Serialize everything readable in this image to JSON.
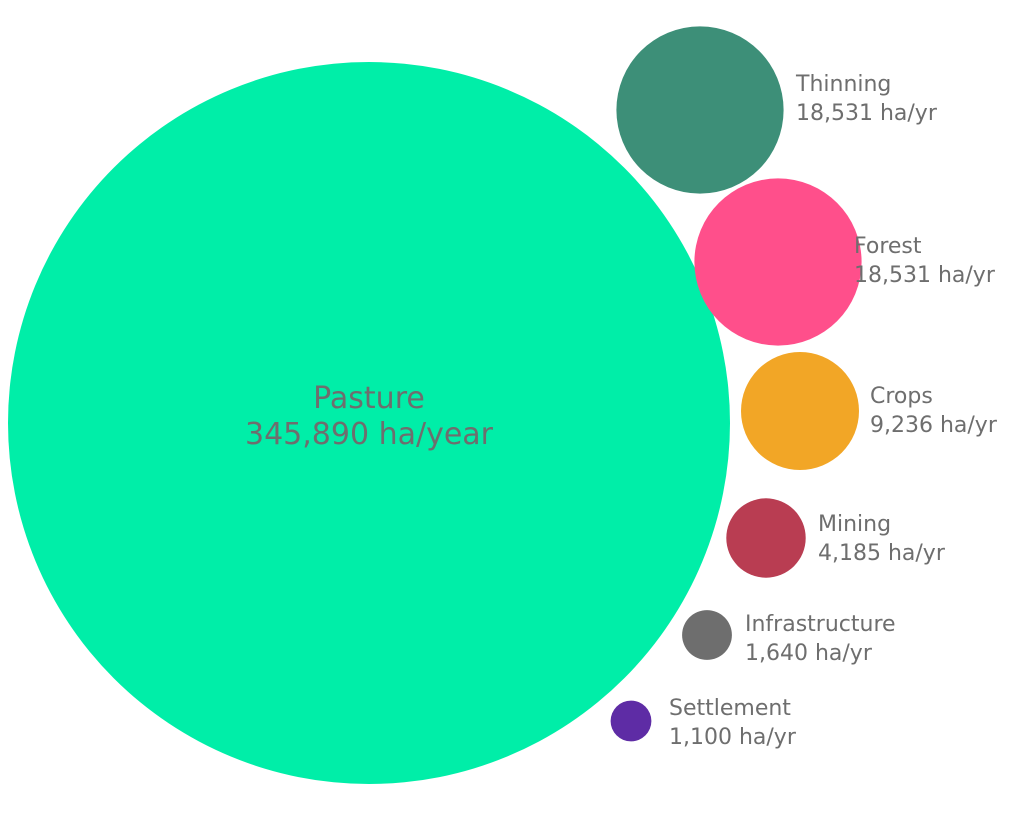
{
  "chart_data": {
    "type": "bubble",
    "series": [
      {
        "name": "Pasture",
        "value": 345890,
        "display": "345,890 ha/year",
        "color": "#00EEA8"
      },
      {
        "name": "Thinning",
        "value": 18531,
        "display": "18,531 ha/yr",
        "color": "#3D8F78"
      },
      {
        "name": "Forest",
        "value": 18531,
        "display": "18,531 ha/yr",
        "color": "#FF4F8B"
      },
      {
        "name": "Crops",
        "value": 9236,
        "display": "9,236 ha/yr",
        "color": "#F2A626"
      },
      {
        "name": "Mining",
        "value": 4185,
        "display": "4,185 ha/yr",
        "color": "#B93D52"
      },
      {
        "name": "Infrastructure",
        "value": 1640,
        "display": "1,640 ha/yr",
        "color": "#6E6E6E"
      },
      {
        "name": "Settlement",
        "value": 1100,
        "display": "1,100 ha/yr",
        "color": "#5E2CA5"
      }
    ]
  }
}
